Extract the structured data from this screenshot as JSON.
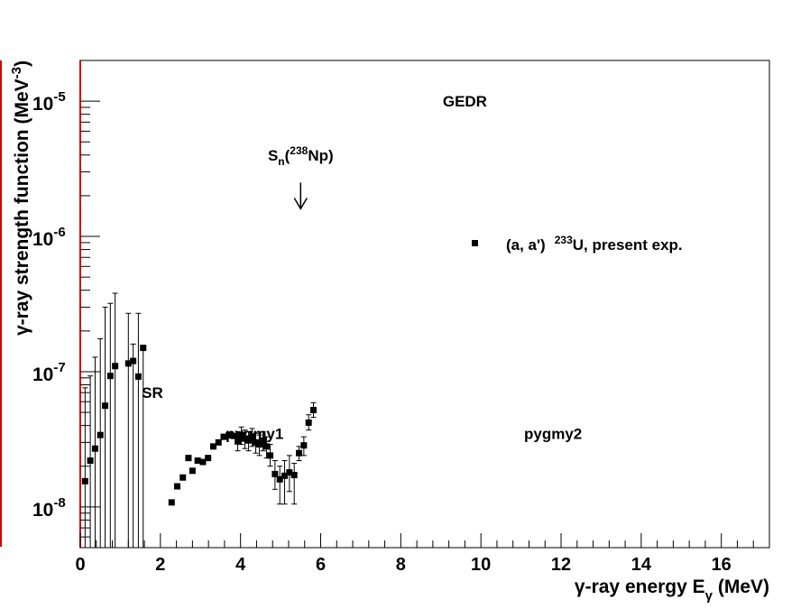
{
  "chart_data": {
    "type": "scatter",
    "xlabel": "γ-ray energy E",
    "xlabel_sub": "γ",
    "xlabel_unit": " (MeV)",
    "ylabel": "γ-ray strength function (MeV",
    "ylabel_sup": "-3",
    "ylabel_close": ")",
    "xlim": [
      0,
      17.2
    ],
    "ylim": [
      5e-09,
      2e-05
    ],
    "yscale": "log",
    "x_ticks": [
      0,
      2,
      4,
      6,
      8,
      10,
      12,
      14,
      16
    ],
    "x_tick_labels": [
      "0",
      "2",
      "4",
      "6",
      "8",
      "10",
      "12",
      "14",
      "16"
    ],
    "y_ticks": [
      {
        "value": 1e-08,
        "base": "10",
        "exp": "-8"
      },
      {
        "value": 1e-07,
        "base": "10",
        "exp": "-7"
      },
      {
        "value": 1e-06,
        "base": "10",
        "exp": "-6"
      },
      {
        "value": 1e-05,
        "base": "10",
        "exp": "-5"
      }
    ],
    "legend": {
      "position": "top-right",
      "marker_color": "#000000",
      "label_prefix": "(a, a')",
      "label_sup": "233",
      "label_suffix": "U, present exp."
    },
    "annotations": {
      "gedr": {
        "text": "GEDR",
        "x": 9.6,
        "y": 1e-05
      },
      "sr": {
        "text": "SR",
        "x": 1.8,
        "y": 7e-08
      },
      "pygmy1": {
        "text": "pygmy1",
        "x": 4.35,
        "y": 3.5e-08
      },
      "pygmy2": {
        "text": "pygmy2",
        "x": 11.8,
        "y": 3.5e-08
      },
      "sn": {
        "prefix": "S",
        "sub": "n",
        "open": "(",
        "sup": "238",
        "rest": "Np)",
        "x": 5.5,
        "y": 4e-06
      },
      "sn_arrow": {
        "x": 5.5,
        "y_from": 2.5e-06,
        "y_to": 1.6e-06
      }
    },
    "series": [
      {
        "color": "#000000",
        "points": [
          {
            "x": 0.12,
            "y": 1.55e-08,
            "lo": 5e-09,
            "hi": 7.6e-08
          },
          {
            "x": 0.25,
            "y": 2.2e-08,
            "lo": 5e-09,
            "hi": 9.3e-08
          },
          {
            "x": 0.37,
            "y": 2.7e-08,
            "lo": 5e-09,
            "hi": 1.28e-07
          },
          {
            "x": 0.5,
            "y": 3.4e-08,
            "lo": 5e-09,
            "hi": 1.75e-07
          },
          {
            "x": 0.62,
            "y": 5.6e-08,
            "lo": 5e-09,
            "hi": 3e-07
          },
          {
            "x": 0.75,
            "y": 9.3e-08,
            "lo": 5e-09,
            "hi": 3.2e-07
          },
          {
            "x": 0.87,
            "y": 1.1e-07,
            "lo": 5e-09,
            "hi": 3.8e-07
          },
          {
            "x": 1.2,
            "y": 1.15e-07,
            "lo": 5e-09,
            "hi": 2.7e-07
          },
          {
            "x": 1.32,
            "y": 1.2e-07,
            "lo": 5e-09,
            "hi": 1.6e-07
          },
          {
            "x": 1.45,
            "y": 9.2e-08,
            "lo": 5e-09,
            "hi": 2.7e-07
          },
          {
            "x": 1.57,
            "y": 1.5e-07,
            "lo": 5e-09,
            "hi": 1.5e-07
          },
          {
            "x": 2.28,
            "y": 1.08e-08
          },
          {
            "x": 2.42,
            "y": 1.42e-08
          },
          {
            "x": 2.56,
            "y": 1.65e-08
          },
          {
            "x": 2.7,
            "y": 2.3e-08
          },
          {
            "x": 2.8,
            "y": 1.85e-08
          },
          {
            "x": 2.93,
            "y": 2.2e-08
          },
          {
            "x": 3.06,
            "y": 2.15e-08
          },
          {
            "x": 3.19,
            "y": 2.3e-08
          },
          {
            "x": 3.32,
            "y": 2.8e-08
          },
          {
            "x": 3.45,
            "y": 3e-08
          },
          {
            "x": 3.58,
            "y": 3.3e-08
          },
          {
            "x": 3.71,
            "y": 3.4e-08
          },
          {
            "x": 3.84,
            "y": 3.35e-08
          },
          {
            "x": 3.93,
            "y": 3.05e-08,
            "lo": 2.6e-08,
            "hi": 3.6e-08
          },
          {
            "x": 4.02,
            "y": 3.4e-08,
            "lo": 2.9e-08,
            "hi": 3.9e-08
          },
          {
            "x": 4.11,
            "y": 3.2e-08,
            "lo": 2.7e-08,
            "hi": 3.7e-08
          },
          {
            "x": 4.2,
            "y": 3.1e-08,
            "lo": 2.6e-08,
            "hi": 3.6e-08
          },
          {
            "x": 4.29,
            "y": 3.3e-08,
            "lo": 2.8e-08,
            "hi": 3.8e-08
          },
          {
            "x": 4.38,
            "y": 3e-08,
            "lo": 2.5e-08,
            "hi": 3.5e-08
          },
          {
            "x": 4.47,
            "y": 2.9e-08,
            "lo": 2.4e-08,
            "hi": 3.4e-08
          },
          {
            "x": 4.56,
            "y": 3.1e-08,
            "lo": 2.6e-08,
            "hi": 3.6e-08
          },
          {
            "x": 4.65,
            "y": 2.8e-08,
            "lo": 2.3e-08,
            "hi": 3.3e-08
          },
          {
            "x": 4.74,
            "y": 2.4e-08,
            "lo": 2e-08,
            "hi": 2.9e-08
          },
          {
            "x": 4.86,
            "y": 1.75e-08,
            "lo": 1.35e-08,
            "hi": 2.2e-08
          },
          {
            "x": 4.98,
            "y": 1.6e-08,
            "lo": 1.05e-08,
            "hi": 2e-08
          },
          {
            "x": 5.1,
            "y": 1.7e-08,
            "lo": 1.05e-08,
            "hi": 2.2e-08
          },
          {
            "x": 5.22,
            "y": 1.8e-08,
            "lo": 1.3e-08,
            "hi": 2.4e-08
          },
          {
            "x": 5.34,
            "y": 1.72e-08,
            "lo": 1.05e-08,
            "hi": 2.1e-08
          },
          {
            "x": 5.46,
            "y": 2.5e-08,
            "lo": 2.2e-08,
            "hi": 2.8e-08
          },
          {
            "x": 5.58,
            "y": 2.85e-08,
            "lo": 2.4e-08,
            "hi": 3.3e-08
          },
          {
            "x": 5.7,
            "y": 4.2e-08,
            "lo": 3.7e-08,
            "hi": 4.8e-08
          },
          {
            "x": 5.82,
            "y": 5.2e-08,
            "lo": 4.6e-08,
            "hi": 5.9e-08
          }
        ]
      }
    ]
  }
}
